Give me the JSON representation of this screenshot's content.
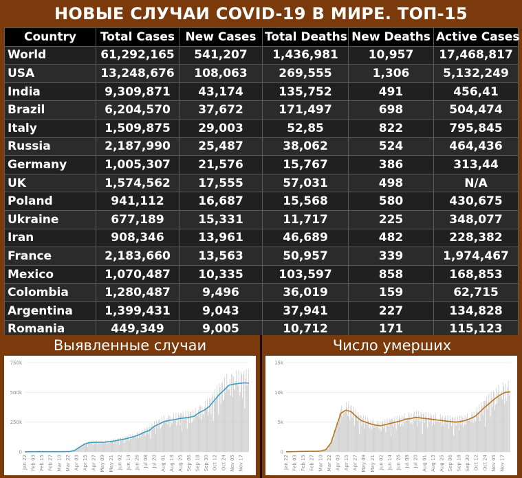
{
  "title": "НОВЫЕ СЛУЧАИ COVID-19 В МИРЕ. ТОП-15",
  "table": {
    "headers": [
      "Country",
      "Total Cases",
      "New Cases",
      "Total Deaths",
      "New Deaths",
      "Active Cases"
    ],
    "header_colors": [
      "#ffffff",
      "#ffff00",
      "#ffff00",
      "#ff8080",
      "#ff8080",
      "#ffff00"
    ],
    "rows": [
      [
        "World",
        "61,292,165",
        "541,207",
        "1,436,981",
        "10,957",
        "17,468,817"
      ],
      [
        "USA",
        "13,248,676",
        "108,063",
        "269,555",
        "1,306",
        "5,132,249"
      ],
      [
        "India",
        "9,309,871",
        "43,174",
        "135,752",
        "491",
        "456,41"
      ],
      [
        "Brazil",
        "6,204,570",
        "37,672",
        "171,497",
        "698",
        "504,474"
      ],
      [
        "Italy",
        "1,509,875",
        "29,003",
        "52,85",
        "822",
        "795,845"
      ],
      [
        "Russia",
        "2,187,990",
        "25,487",
        "38,062",
        "524",
        "464,436"
      ],
      [
        "Germany",
        "1,005,307",
        "21,576",
        "15,767",
        "386",
        "313,44"
      ],
      [
        "UK",
        "1,574,562",
        "17,555",
        "57,031",
        "498",
        "N/A"
      ],
      [
        "Poland",
        "941,112",
        "16,687",
        "15,568",
        "580",
        "430,675"
      ],
      [
        "Ukraine",
        "677,189",
        "15,331",
        "11,717",
        "225",
        "348,077"
      ],
      [
        "Iran",
        "908,346",
        "13,961",
        "46,689",
        "482",
        "228,382"
      ],
      [
        "France",
        "2,183,660",
        "13,563",
        "50,957",
        "339",
        "1,974,467"
      ],
      [
        "Mexico",
        "1,070,487",
        "10,335",
        "103,597",
        "858",
        "168,853"
      ],
      [
        "Colombia",
        "1,280,487",
        "9,496",
        "36,019",
        "159",
        "62,715"
      ],
      [
        "Argentina",
        "1,399,431",
        "9,043",
        "37,941",
        "227",
        "134,828"
      ],
      [
        "Romania",
        "449,349",
        "9,005",
        "10,712",
        "171",
        "115,123"
      ]
    ]
  },
  "chart_data": [
    {
      "type": "bar",
      "title": "Выявленные случаи",
      "color_bars": "#c8c8c8",
      "color_line": "#3a9cc0",
      "xlabel": "",
      "ylabel": "",
      "ylim": [
        0,
        750000
      ],
      "y_ticks": [
        "0",
        "250k",
        "500k",
        "750k"
      ],
      "x_ticks": [
        "Jan 22",
        "Feb 03",
        "Feb 15",
        "Feb 27",
        "Mar 10",
        "Mar 22",
        "Apr 03",
        "Apr 15",
        "Apr 27",
        "May 09",
        "May 21",
        "Jun 02",
        "Jun 14",
        "Jun 26",
        "Jul 08",
        "Jul 20",
        "Aug 01",
        "Aug 13",
        "Aug 25",
        "Sep 06",
        "Sep 18",
        "Sep 30",
        "Oct 12",
        "Oct 24",
        "Nov 05",
        "Nov 17"
      ],
      "x_tick_values": [
        "2020-01-22",
        "2020-02-03",
        "2020-02-15",
        "2020-02-27",
        "2020-03-10",
        "2020-03-22",
        "2020-04-03",
        "2020-04-15",
        "2020-04-27",
        "2020-05-09",
        "2020-05-21",
        "2020-06-02",
        "2020-06-14",
        "2020-06-26",
        "2020-07-08",
        "2020-07-20",
        "2020-08-01",
        "2020-08-13",
        "2020-08-25",
        "2020-09-06",
        "2020-09-18",
        "2020-09-30",
        "2020-10-12",
        "2020-10-24",
        "2020-11-05",
        "2020-11-17"
      ],
      "moving_average": [
        500,
        1500,
        2000,
        2500,
        1500,
        2000,
        1500,
        2000,
        2500,
        3000,
        12000,
        40000,
        65000,
        78000,
        80000,
        80000,
        82000,
        86000,
        92000,
        100000,
        108000,
        118000,
        130000,
        145000,
        165000,
        180000,
        215000,
        235000,
        255000,
        265000,
        270000,
        280000,
        285000,
        290000,
        300000,
        330000,
        350000,
        380000,
        430000,
        480000,
        520000,
        560000,
        570000,
        575000,
        580000,
        578000
      ]
    },
    {
      "type": "bar",
      "title": "Число умерших",
      "color_bars": "#c8c8c8",
      "color_line": "#b8731c",
      "xlabel": "",
      "ylabel": "",
      "ylim": [
        0,
        15000
      ],
      "y_ticks": [
        "0",
        "5k",
        "10k",
        "15k"
      ],
      "x_ticks": [
        "Jan 22",
        "Feb 03",
        "Feb 15",
        "Feb 27",
        "Mar 10",
        "Mar 22",
        "Apr 03",
        "Apr 15",
        "Apr 27",
        "May 09",
        "May 21",
        "Jun 02",
        "Jun 14",
        "Jun 26",
        "Jul 08",
        "Jul 20",
        "Aug 01",
        "Aug 13",
        "Aug 25",
        "Sep 06",
        "Sep 18",
        "Sep 30",
        "Oct 12",
        "Oct 24",
        "Nov 05",
        "Nov 17"
      ],
      "x_tick_values": [
        "2020-01-22",
        "2020-02-03",
        "2020-02-15",
        "2020-02-27",
        "2020-03-10",
        "2020-03-22",
        "2020-04-03",
        "2020-04-15",
        "2020-04-27",
        "2020-05-09",
        "2020-05-21",
        "2020-06-02",
        "2020-06-14",
        "2020-06-26",
        "2020-07-08",
        "2020-07-20",
        "2020-08-01",
        "2020-08-13",
        "2020-08-25",
        "2020-09-06",
        "2020-09-18",
        "2020-09-30",
        "2020-10-12",
        "2020-10-24",
        "2020-11-05",
        "2020-11-17"
      ],
      "moving_average": [
        20,
        40,
        60,
        80,
        90,
        100,
        100,
        150,
        400,
        1500,
        4000,
        6500,
        7000,
        6800,
        6000,
        5300,
        5000,
        4700,
        4500,
        4400,
        4600,
        4800,
        5000,
        5200,
        5500,
        5600,
        5800,
        5700,
        5600,
        5500,
        5400,
        5300,
        5200,
        5100,
        5000,
        5100,
        5300,
        5600,
        6000,
        6800,
        7600,
        8300,
        9000,
        9600,
        10000,
        10100
      ]
    }
  ]
}
